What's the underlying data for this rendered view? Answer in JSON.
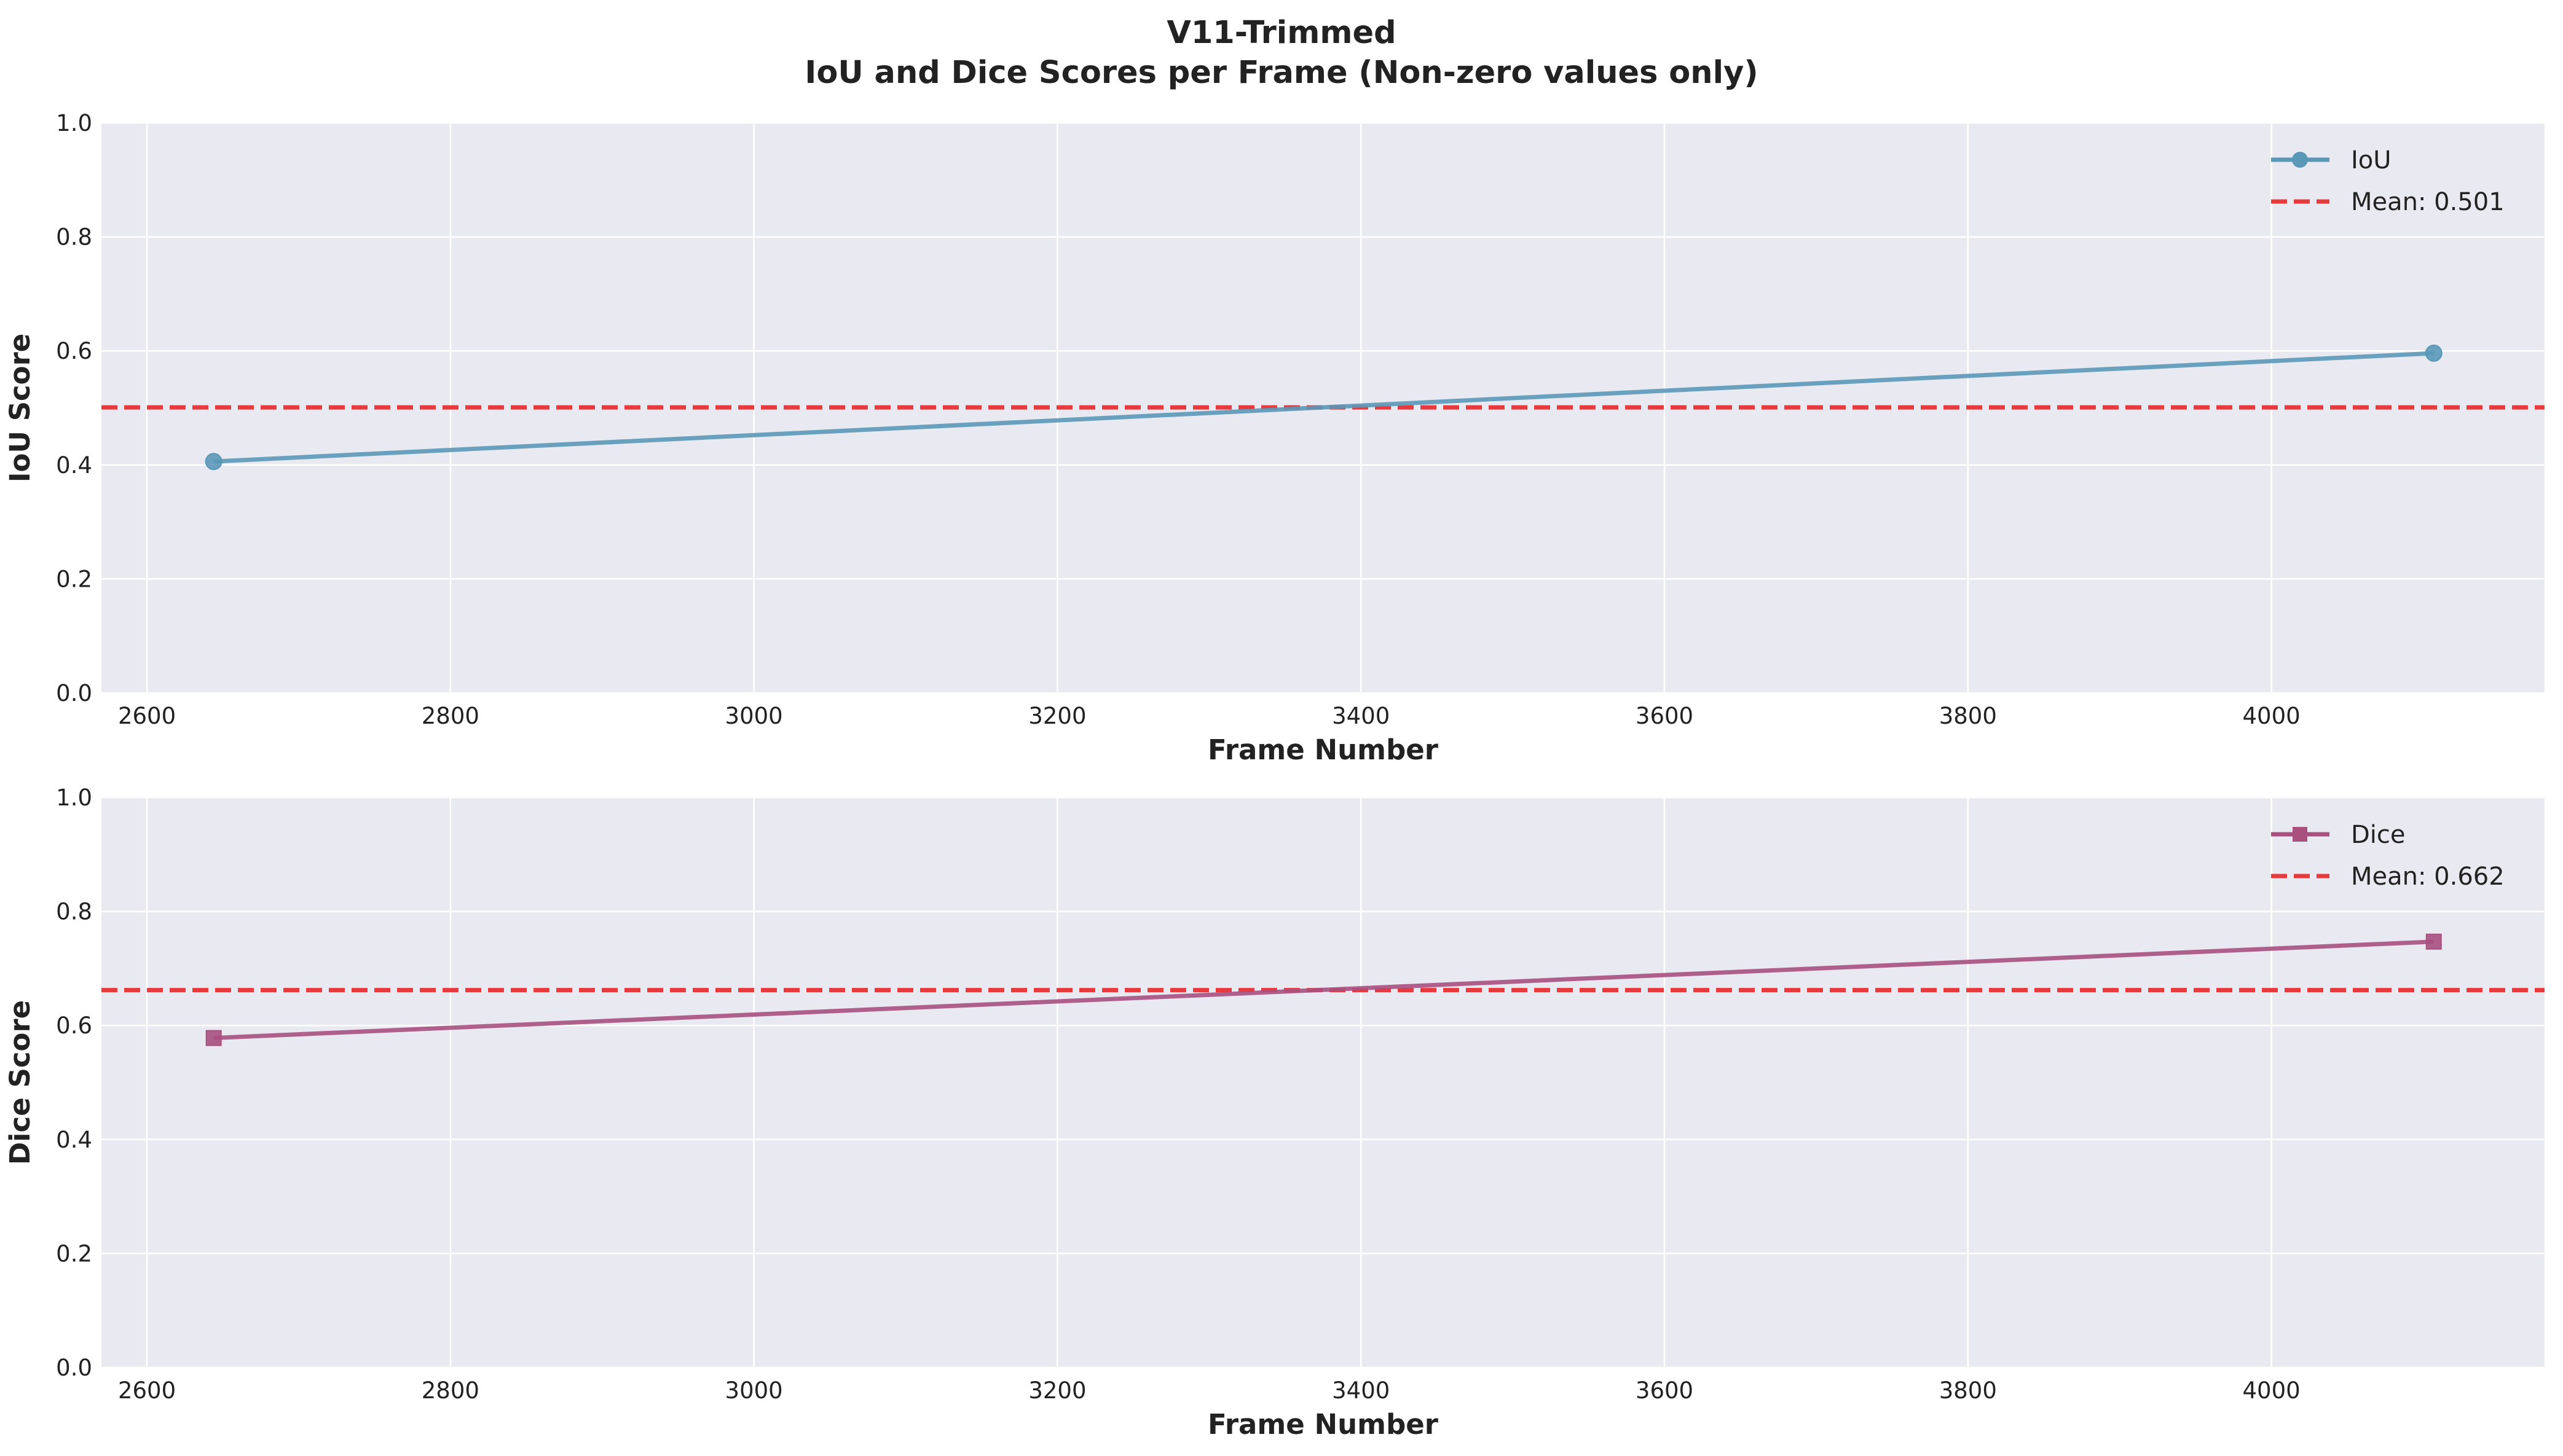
{
  "figure": {
    "title_line1": "V11-Trimmed",
    "title_line2": "IoU and Dice Scores per Frame (Non-zero values only)"
  },
  "colors": {
    "plot_background": "#e9e9f1",
    "grid": "#ffffff",
    "mean_line": "#e8393d",
    "iou_series": "#5a98b8",
    "dice_series": "#a9507f"
  },
  "chart_data": [
    {
      "type": "line",
      "xlabel": "Frame Number",
      "ylabel": "IoU Score",
      "xlim": [
        2570,
        4180
      ],
      "ylim": [
        0,
        1
      ],
      "x_ticks": [
        "2600",
        "2800",
        "3000",
        "3200",
        "3400",
        "3600",
        "3800",
        "4000"
      ],
      "y_ticks": [
        "0.0",
        "0.2",
        "0.4",
        "0.6",
        "0.8",
        "1.0"
      ],
      "grid": true,
      "legend_position": "top-right",
      "series": [
        {
          "name": "IoU",
          "marker": "circle",
          "x": [
            2644,
            4107
          ],
          "y": [
            0.406,
            0.596
          ]
        }
      ],
      "mean": {
        "value": 0.501,
        "label": "Mean: 0.501"
      }
    },
    {
      "type": "line",
      "xlabel": "Frame Number",
      "ylabel": "Dice Score",
      "xlim": [
        2570,
        4180
      ],
      "ylim": [
        0,
        1
      ],
      "x_ticks": [
        "2600",
        "2800",
        "3000",
        "3200",
        "3400",
        "3600",
        "3800",
        "4000"
      ],
      "y_ticks": [
        "0.0",
        "0.2",
        "0.4",
        "0.6",
        "0.8",
        "1.0"
      ],
      "grid": true,
      "legend_position": "top-right",
      "series": [
        {
          "name": "Dice",
          "marker": "square",
          "x": [
            2644,
            4107
          ],
          "y": [
            0.578,
            0.747
          ]
        }
      ],
      "mean": {
        "value": 0.662,
        "label": "Mean: 0.662"
      }
    }
  ]
}
